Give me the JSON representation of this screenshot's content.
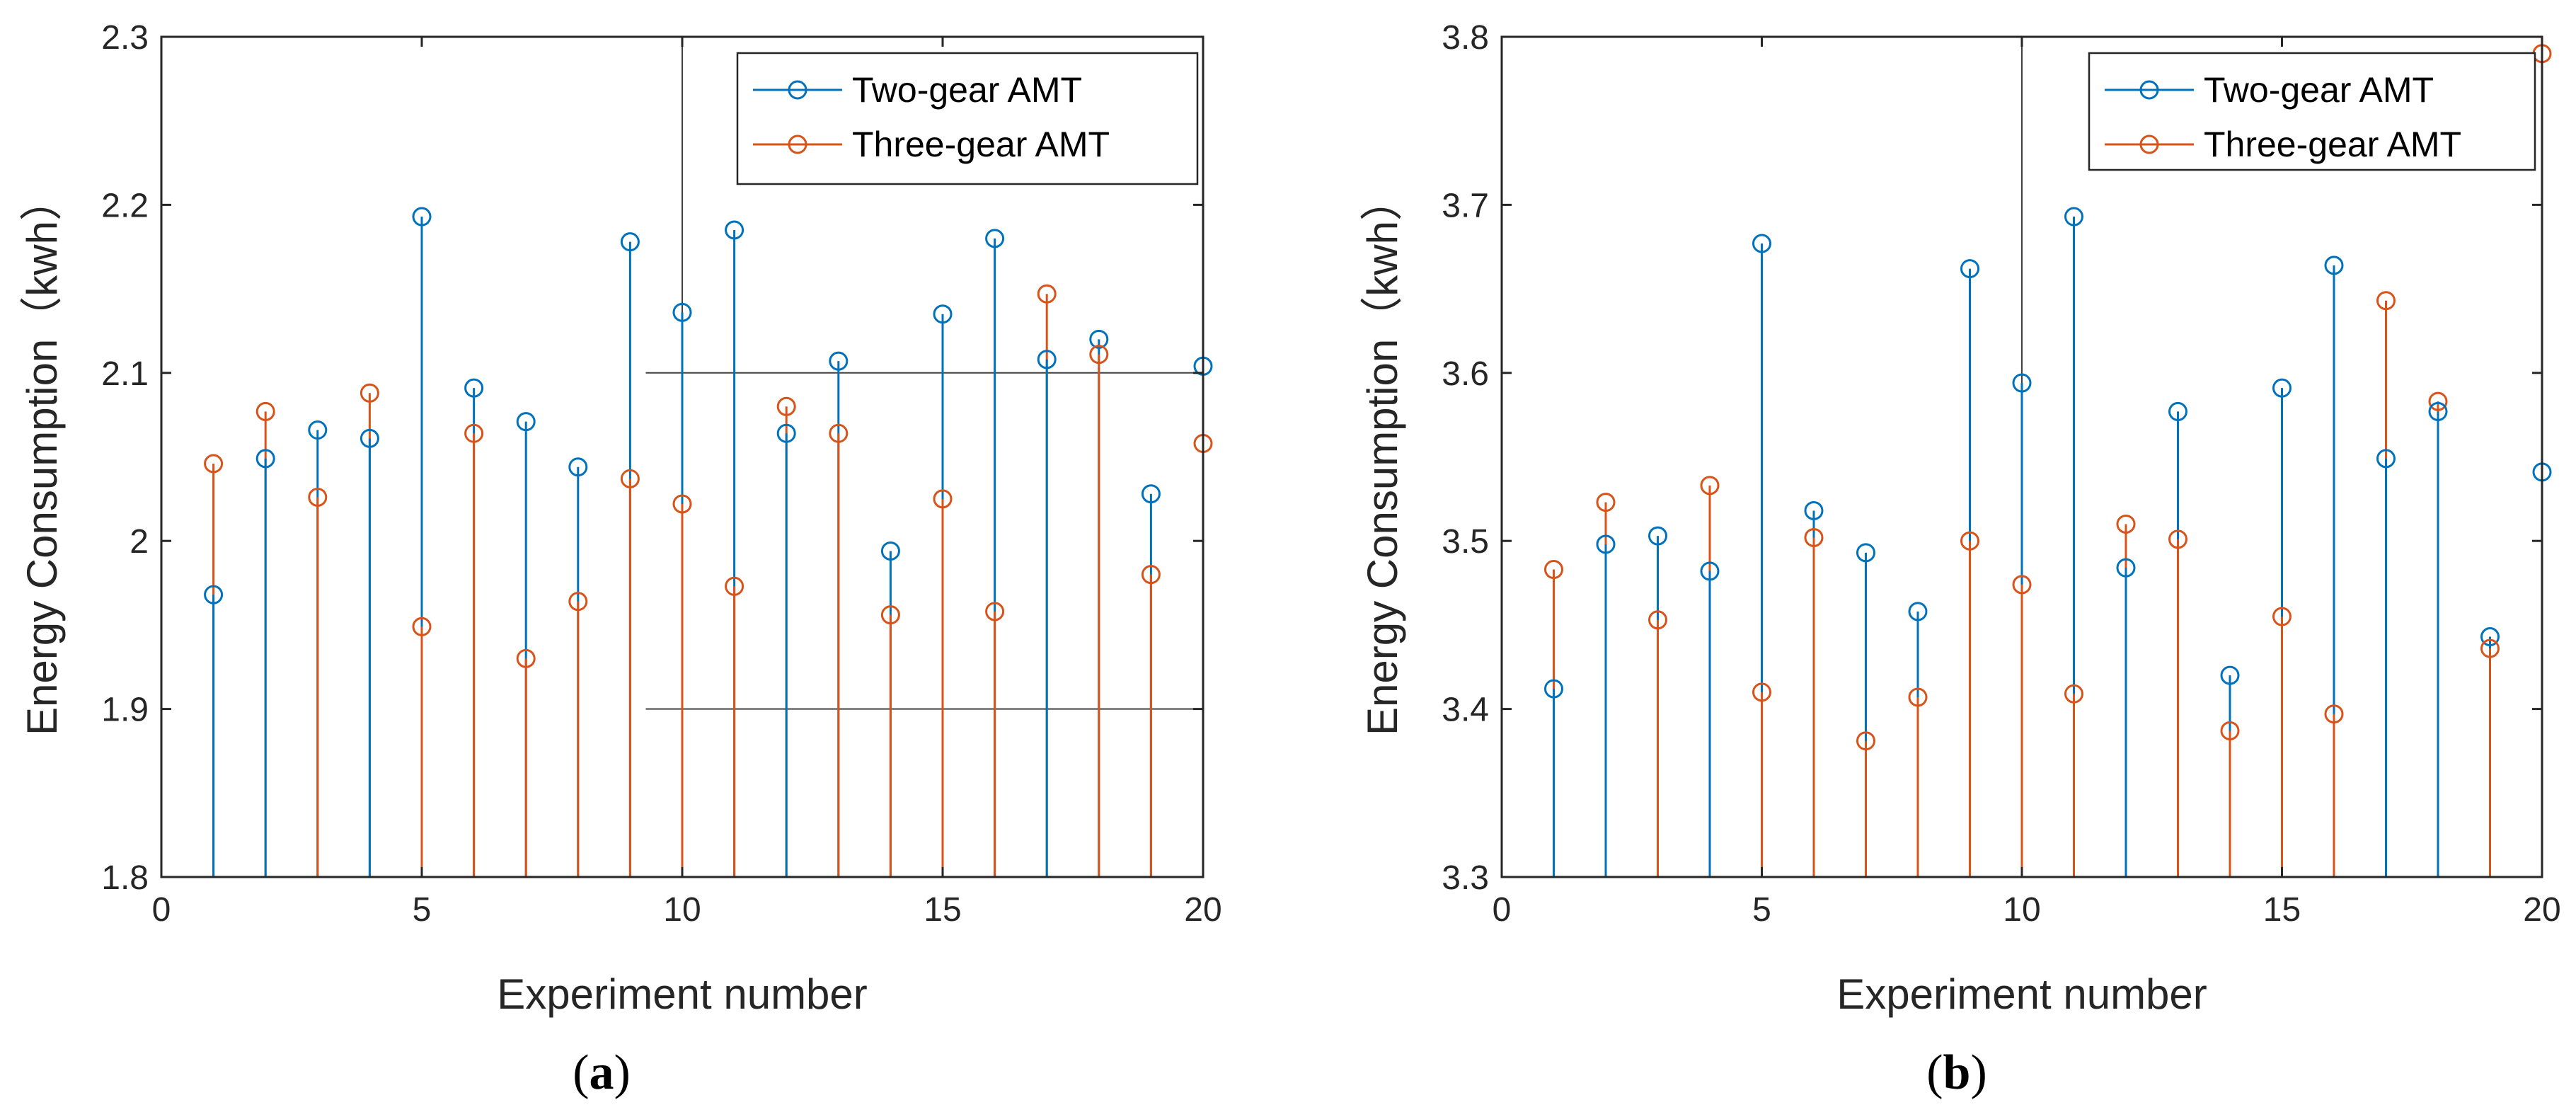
{
  "colors": {
    "two_gear": "#0072BD",
    "three_gear": "#D95319",
    "axis": "#262626",
    "guide": "#404040"
  },
  "chart_data": [
    {
      "type": "stem",
      "panel_label": "a",
      "xlabel": "Experiment number",
      "ylabel": "Energy Consumption（kwh）",
      "xlim": [
        0,
        20
      ],
      "ylim": [
        1.8,
        2.3
      ],
      "xticks": [
        0,
        5,
        10,
        15,
        20
      ],
      "xtick_labels": [
        "0",
        "5",
        "10",
        "15",
        "20"
      ],
      "yticks": [
        1.8,
        1.9,
        2.0,
        2.1,
        2.2,
        2.3
      ],
      "ytick_labels": [
        "1.8",
        "1.9",
        "2",
        "2.1",
        "2.2",
        "2.3"
      ],
      "legend": {
        "position": "top-right",
        "entries": [
          "Two-gear AMT",
          "Three-gear AMT"
        ]
      },
      "guides": {
        "vertical_x": 10,
        "horizontal_y": [
          2.1,
          1.9
        ],
        "horizontal_from_x": 9.3
      },
      "x": [
        1,
        2,
        3,
        4,
        5,
        6,
        7,
        8,
        9,
        10,
        11,
        12,
        13,
        14,
        15,
        16,
        17,
        18,
        19,
        20
      ],
      "series": [
        {
          "name": "Two-gear AMT",
          "values": [
            1.968,
            2.049,
            2.066,
            2.061,
            2.193,
            2.091,
            2.071,
            2.044,
            2.178,
            2.136,
            2.185,
            2.064,
            2.107,
            1.994,
            2.135,
            2.18,
            2.108,
            2.12,
            2.028,
            2.104
          ]
        },
        {
          "name": "Three-gear AMT",
          "values": [
            2.046,
            2.077,
            2.026,
            2.088,
            1.949,
            2.064,
            1.93,
            1.964,
            2.037,
            2.022,
            1.973,
            2.08,
            2.064,
            1.956,
            2.025,
            1.958,
            2.147,
            2.111,
            1.98,
            2.058
          ]
        }
      ]
    },
    {
      "type": "stem",
      "panel_label": "b",
      "xlabel": "Experiment number",
      "ylabel": "Energy Consumption（kwh）",
      "xlim": [
        0,
        20
      ],
      "ylim": [
        3.3,
        3.8
      ],
      "xticks": [
        0,
        5,
        10,
        15,
        20
      ],
      "xtick_labels": [
        "0",
        "5",
        "10",
        "15",
        "20"
      ],
      "yticks": [
        3.3,
        3.4,
        3.5,
        3.6,
        3.7,
        3.8
      ],
      "ytick_labels": [
        "3.3",
        "3.4",
        "3.5",
        "3.6",
        "3.7",
        "3.8"
      ],
      "legend": {
        "position": "top-right",
        "entries": [
          "Two-gear AMT",
          "Three-gear AMT"
        ]
      },
      "guides": {
        "vertical_x": 10,
        "horizontal_y": [],
        "horizontal_from_x": 10
      },
      "x": [
        1,
        2,
        3,
        4,
        5,
        6,
        7,
        8,
        9,
        10,
        11,
        12,
        13,
        14,
        15,
        16,
        17,
        18,
        19,
        20
      ],
      "series": [
        {
          "name": "Two-gear AMT",
          "values": [
            3.412,
            3.498,
            3.503,
            3.482,
            3.677,
            3.518,
            3.493,
            3.458,
            3.662,
            3.594,
            3.693,
            3.484,
            3.577,
            3.42,
            3.591,
            3.664,
            3.549,
            3.577,
            3.443,
            3.541
          ]
        },
        {
          "name": "Three-gear AMT",
          "values": [
            3.483,
            3.523,
            3.453,
            3.533,
            3.41,
            3.502,
            3.381,
            3.407,
            3.5,
            3.474,
            3.409,
            3.51,
            3.501,
            3.387,
            3.455,
            3.397,
            3.643,
            3.583,
            3.436,
            3.79
          ]
        }
      ]
    }
  ]
}
